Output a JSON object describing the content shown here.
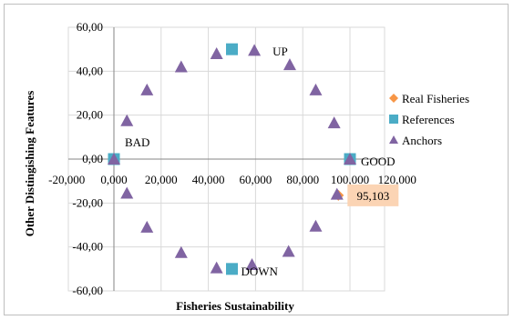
{
  "chart_data": {
    "type": "scatter",
    "title": "",
    "xlabel": "Fisheries Sustainability",
    "ylabel": "Other Distingishing Features",
    "xlim": [
      -20,
      120
    ],
    "ylim": [
      -60,
      60
    ],
    "x_ticks": [
      "-20,000",
      "0,000",
      "20,000",
      "40,000",
      "60,000",
      "80,000",
      "100,000",
      "120,000"
    ],
    "x_tick_values": [
      -20,
      0,
      20,
      40,
      60,
      80,
      100,
      120
    ],
    "y_ticks": [
      "60,00",
      "40,00",
      "20,00",
      "0,00",
      "-20,00",
      "-40,00",
      "-60,00"
    ],
    "y_tick_values": [
      60,
      40,
      20,
      0,
      -20,
      -40,
      -60
    ],
    "grid": true,
    "legend_position": "right",
    "series": [
      {
        "name": "Real Fisheries",
        "marker": "diamond",
        "color": "#f79646",
        "points": [
          [
            95.103,
            -16.5
          ]
        ]
      },
      {
        "name": "References",
        "marker": "square",
        "color": "#4bacc6",
        "points": [
          [
            0,
            0
          ],
          [
            100,
            0
          ],
          [
            50,
            50
          ],
          [
            50,
            -50
          ]
        ]
      },
      {
        "name": "Anchors",
        "marker": "triangle",
        "color": "#8064a2",
        "points": [
          [
            100,
            0
          ],
          [
            93.3,
            16.5
          ],
          [
            85.5,
            31.5
          ],
          [
            74.5,
            43
          ],
          [
            59.5,
            49.5
          ],
          [
            43.5,
            48
          ],
          [
            28.5,
            42
          ],
          [
            14,
            31.5
          ],
          [
            5.5,
            17.5
          ],
          [
            0,
            0
          ],
          [
            5.5,
            -15.5
          ],
          [
            14,
            -31
          ],
          [
            28.5,
            -42.5
          ],
          [
            43.5,
            -49.5
          ],
          [
            58.5,
            -48
          ],
          [
            74,
            -42
          ],
          [
            85.5,
            -30.5
          ],
          [
            94.5,
            -16
          ]
        ]
      }
    ],
    "annotations": [
      {
        "text": "UP",
        "x": 59.5,
        "y": 50
      },
      {
        "text": "GOOD",
        "x": 100,
        "y": 0
      },
      {
        "text": "BAD",
        "x": 0,
        "y": 0
      },
      {
        "text": "DOWN",
        "x": 50,
        "y": -50
      }
    ],
    "data_label": {
      "text": "95,103",
      "x": 95.103,
      "y": -16.5
    }
  }
}
